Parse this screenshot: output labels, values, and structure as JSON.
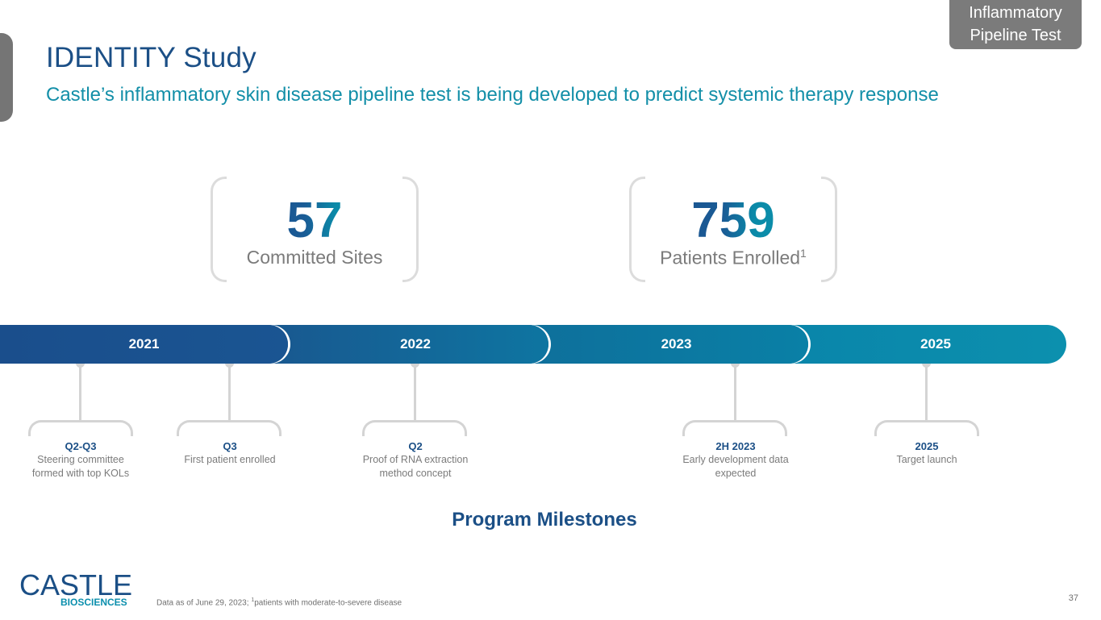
{
  "corner_tag": {
    "line1": "Inflammatory",
    "line2": "Pipeline Test"
  },
  "slide": {
    "title": "IDENTITY Study",
    "subtitle": "Castle’s inflammatory skin disease pipeline test is being developed to predict systemic therapy response"
  },
  "stats": [
    {
      "value": "57",
      "label": "Committed Sites",
      "sup": ""
    },
    {
      "value": "759",
      "label": "Patients Enrolled",
      "sup": "1"
    }
  ],
  "timeline": {
    "years": [
      "2021",
      "2022",
      "2023",
      "2025"
    ],
    "milestones": [
      {
        "head": "Q2-Q3",
        "line1": "Steering committee",
        "line2": "formed with top KOLs"
      },
      {
        "head": "Q3",
        "line1": "First patient enrolled",
        "line2": ""
      },
      {
        "head": "Q2",
        "line1": "Proof of RNA extraction",
        "line2": "method concept"
      },
      {
        "head": "2H 2023",
        "line1": "Early development data",
        "line2": "expected"
      },
      {
        "head": "2025",
        "line1": "Target launch",
        "line2": ""
      }
    ],
    "heading": "Program Milestones"
  },
  "logo": {
    "main": "CASTLE",
    "sub": "BIOSCIENCES"
  },
  "footnote": {
    "prefix": "Data as of June 29, 2023; ",
    "sup": "1",
    "suffix": "patients with moderate-to-severe disease"
  },
  "page_number": "37",
  "colors": {
    "navy": "#1b4f86",
    "teal": "#138fa8",
    "gray": "#7b7b7b"
  }
}
